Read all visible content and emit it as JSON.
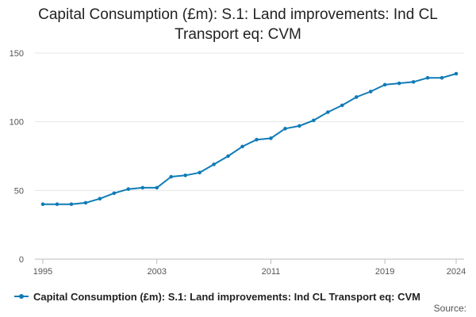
{
  "chart_data": {
    "type": "line",
    "title_lines": [
      "Capital Consumption (£m): S.1: Land improvements: Ind CL",
      "Transport eq: CVM"
    ],
    "xlabel": "",
    "ylabel": "",
    "x": [
      1995,
      1996,
      1997,
      1998,
      1999,
      2000,
      2001,
      2002,
      2003,
      2004,
      2005,
      2006,
      2007,
      2008,
      2009,
      2010,
      2011,
      2012,
      2013,
      2014,
      2015,
      2016,
      2017,
      2018,
      2019,
      2020,
      2021,
      2022,
      2023,
      2024
    ],
    "series": [
      {
        "name": "Capital Consumption (£m): S.1: Land improvements: Ind CL Transport eq: CVM",
        "color": "#0f7bb7",
        "values": [
          40,
          40,
          40,
          41,
          44,
          48,
          51,
          52,
          52,
          60,
          61,
          63,
          69,
          75,
          82,
          87,
          88,
          95,
          97,
          101,
          107,
          112,
          118,
          122,
          127,
          128,
          129,
          132,
          132,
          135
        ]
      }
    ],
    "xlim": [
      1995,
      2024
    ],
    "ylim": [
      0,
      150
    ],
    "x_ticks": [
      1995,
      2003,
      2011,
      2019,
      2024
    ],
    "y_ticks": [
      0,
      50,
      100,
      150
    ],
    "grid": "horizontal",
    "legend_position": "bottom-left"
  },
  "legend": {
    "label": "Capital Consumption (£m): S.1: Land improvements: Ind CL Transport eq: CVM"
  },
  "footer": {
    "source_label": "Source:"
  }
}
